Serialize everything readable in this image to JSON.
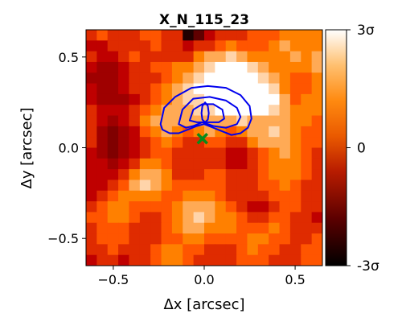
{
  "chart_data": {
    "type": "heatmap",
    "title": "X_N_115_23",
    "xlabel": "Δx [arcsec]",
    "ylabel": "Δy [arcsec]",
    "xlim": [
      -0.65,
      0.65
    ],
    "ylim": [
      -0.65,
      0.65
    ],
    "x_ticks": [
      {
        "value": -0.5,
        "label": "−0.5"
      },
      {
        "value": 0.0,
        "label": "0.0"
      },
      {
        "value": 0.5,
        "label": "0.5"
      }
    ],
    "y_ticks": [
      {
        "value": -0.5,
        "label": "−0.5"
      },
      {
        "value": 0.0,
        "label": "0.0"
      },
      {
        "value": 0.5,
        "label": "0.5"
      }
    ],
    "colormap": "gist_heat",
    "colorbar": {
      "range": [
        -3,
        3
      ],
      "units": "σ",
      "ticks": [
        {
          "value": 3,
          "label": "3σ"
        },
        {
          "value": 0,
          "label": "0"
        },
        {
          "value": -3,
          "label": "-3σ"
        }
      ]
    },
    "grid": {
      "nx": 22,
      "ny": 22,
      "extent": [
        -0.65,
        0.65,
        -0.65,
        0.65
      ],
      "values": [
        [
          0.5,
          1.0,
          0.5,
          0.5,
          0.5,
          1.0,
          1.0,
          0.5,
          0.5,
          -2.5,
          -1.5,
          0.0,
          0.5,
          0.5,
          0.5,
          1.0,
          1.0,
          1.0,
          1.5,
          1.5,
          1.5,
          1.5
        ],
        [
          0.0,
          0.0,
          0.5,
          0.5,
          0.5,
          0.5,
          1.0,
          0.5,
          0.5,
          0.0,
          0.5,
          0.5,
          1.0,
          1.5,
          1.0,
          1.0,
          1.0,
          1.5,
          2.0,
          1.5,
          1.5,
          1.5
        ],
        [
          0.5,
          0.0,
          0.0,
          0.5,
          1.0,
          0.5,
          0.5,
          0.5,
          0.5,
          0.5,
          1.5,
          2.0,
          2.0,
          2.5,
          2.0,
          1.5,
          1.5,
          1.5,
          1.5,
          2.0,
          1.5,
          2.0
        ],
        [
          0.0,
          -0.5,
          -0.5,
          0.0,
          0.5,
          0.5,
          1.0,
          1.0,
          1.5,
          1.5,
          2.0,
          2.5,
          3.0,
          3.0,
          3.0,
          2.5,
          2.0,
          1.5,
          1.5,
          1.5,
          1.5,
          2.0
        ],
        [
          -0.5,
          -0.5,
          -0.5,
          0.0,
          0.5,
          0.5,
          0.5,
          1.0,
          1.5,
          2.0,
          2.5,
          3.0,
          3.0,
          3.0,
          3.0,
          3.0,
          2.5,
          2.0,
          1.5,
          1.0,
          1.0,
          1.5
        ],
        [
          0.0,
          -0.5,
          -0.5,
          0.0,
          0.5,
          0.5,
          1.0,
          1.5,
          2.0,
          2.5,
          3.0,
          3.0,
          3.0,
          3.0,
          3.0,
          3.0,
          3.0,
          2.5,
          1.5,
          1.0,
          1.0,
          1.5
        ],
        [
          0.0,
          -0.5,
          -0.5,
          -0.5,
          0.0,
          0.5,
          1.0,
          1.5,
          2.0,
          2.5,
          2.5,
          3.0,
          3.0,
          3.0,
          3.0,
          3.0,
          3.0,
          3.0,
          2.0,
          1.0,
          1.5,
          1.5
        ],
        [
          0.5,
          0.0,
          0.0,
          0.0,
          0.5,
          1.0,
          1.5,
          2.0,
          2.0,
          2.0,
          2.5,
          2.5,
          3.0,
          3.0,
          3.0,
          3.0,
          3.0,
          2.5,
          2.0,
          1.5,
          1.5,
          1.5
        ],
        [
          0.5,
          0.0,
          -0.5,
          0.0,
          0.5,
          1.5,
          2.0,
          2.0,
          2.0,
          2.0,
          2.0,
          2.0,
          2.0,
          2.0,
          2.5,
          2.0,
          2.0,
          2.0,
          2.0,
          1.5,
          1.5,
          1.0
        ],
        [
          0.5,
          -0.5,
          -1.0,
          -0.5,
          0.0,
          1.0,
          1.5,
          2.0,
          1.5,
          1.0,
          1.5,
          2.0,
          1.5,
          1.0,
          1.5,
          2.0,
          2.0,
          2.5,
          2.0,
          1.5,
          1.0,
          1.0
        ],
        [
          0.5,
          -0.5,
          -1.0,
          -0.5,
          0.0,
          0.5,
          1.0,
          1.5,
          1.0,
          0.5,
          0.5,
          1.0,
          1.0,
          0.5,
          0.5,
          1.5,
          2.0,
          2.0,
          2.0,
          1.5,
          1.0,
          1.0
        ],
        [
          0.0,
          -0.5,
          -1.0,
          -0.5,
          0.0,
          0.5,
          1.0,
          1.0,
          0.5,
          0.5,
          0.5,
          0.5,
          0.5,
          0.0,
          0.0,
          0.5,
          1.0,
          1.5,
          2.0,
          1.5,
          1.0,
          0.5
        ],
        [
          0.0,
          0.0,
          -0.5,
          0.0,
          0.5,
          1.5,
          1.5,
          1.0,
          0.5,
          0.5,
          0.5,
          0.5,
          0.5,
          0.0,
          0.0,
          0.5,
          1.0,
          1.5,
          1.5,
          1.5,
          1.0,
          0.5
        ],
        [
          0.0,
          0.0,
          0.0,
          0.5,
          1.5,
          2.0,
          2.0,
          1.5,
          0.5,
          0.5,
          0.5,
          1.0,
          1.0,
          0.5,
          0.5,
          0.5,
          1.0,
          1.5,
          1.5,
          1.5,
          1.0,
          0.5
        ],
        [
          0.0,
          0.0,
          0.5,
          1.0,
          2.0,
          2.5,
          2.0,
          1.5,
          1.0,
          1.0,
          1.0,
          1.0,
          1.0,
          0.5,
          0.5,
          0.5,
          1.0,
          1.0,
          1.5,
          1.0,
          0.5,
          0.5
        ],
        [
          0.0,
          0.5,
          1.0,
          1.5,
          1.5,
          1.5,
          1.5,
          1.0,
          1.0,
          1.5,
          1.5,
          1.5,
          1.0,
          0.5,
          0.5,
          0.5,
          0.5,
          1.0,
          1.0,
          1.0,
          0.5,
          0.5
        ],
        [
          0.5,
          1.0,
          1.5,
          1.5,
          1.0,
          1.0,
          1.0,
          1.0,
          1.5,
          2.0,
          2.0,
          2.0,
          1.5,
          1.0,
          0.5,
          0.0,
          0.0,
          0.5,
          1.0,
          1.0,
          0.5,
          0.5
        ],
        [
          1.0,
          1.0,
          1.5,
          1.5,
          1.0,
          0.5,
          0.5,
          1.0,
          1.5,
          2.0,
          2.5,
          2.0,
          1.5,
          1.5,
          1.0,
          0.5,
          0.5,
          1.0,
          1.0,
          0.5,
          0.5,
          0.0
        ],
        [
          0.5,
          1.0,
          1.0,
          1.0,
          0.5,
          0.5,
          0.5,
          1.0,
          1.5,
          2.0,
          2.0,
          1.5,
          1.5,
          1.5,
          1.0,
          1.0,
          1.0,
          1.5,
          1.0,
          0.5,
          0.5,
          0.5
        ],
        [
          0.5,
          1.0,
          1.0,
          1.0,
          0.5,
          0.5,
          0.5,
          1.0,
          1.0,
          1.5,
          1.5,
          1.0,
          1.0,
          1.0,
          1.0,
          1.5,
          1.5,
          1.0,
          1.0,
          0.5,
          0.5,
          1.0
        ],
        [
          0.5,
          0.5,
          1.0,
          0.5,
          0.5,
          0.5,
          1.0,
          1.5,
          1.5,
          1.0,
          1.0,
          0.5,
          0.5,
          0.5,
          1.0,
          1.5,
          1.0,
          1.0,
          0.5,
          0.5,
          1.0,
          1.0
        ],
        [
          0.0,
          0.5,
          0.5,
          0.0,
          0.5,
          0.5,
          1.0,
          1.5,
          1.5,
          1.0,
          0.5,
          0.5,
          0.5,
          0.5,
          1.0,
          1.0,
          1.0,
          0.5,
          0.5,
          0.5,
          1.0,
          1.0
        ]
      ]
    },
    "contours": {
      "color": "#0000ee",
      "levels": [
        [
          [
            -0.24,
            0.13
          ],
          [
            -0.22,
            0.22
          ],
          [
            -0.16,
            0.28
          ],
          [
            -0.07,
            0.33
          ],
          [
            0.02,
            0.34
          ],
          [
            0.12,
            0.33
          ],
          [
            0.2,
            0.29
          ],
          [
            0.25,
            0.23
          ],
          [
            0.26,
            0.16
          ],
          [
            0.24,
            0.11
          ],
          [
            0.2,
            0.08
          ],
          [
            0.15,
            0.07
          ],
          [
            0.1,
            0.09
          ],
          [
            0.05,
            0.11
          ],
          [
            0.0,
            0.13
          ],
          [
            -0.04,
            0.12
          ],
          [
            -0.09,
            0.1
          ],
          [
            -0.14,
            0.08
          ],
          [
            -0.19,
            0.08
          ],
          [
            -0.23,
            0.1
          ]
        ],
        [
          [
            -0.14,
            0.13
          ],
          [
            -0.12,
            0.21
          ],
          [
            -0.06,
            0.27
          ],
          [
            0.03,
            0.28
          ],
          [
            0.12,
            0.26
          ],
          [
            0.18,
            0.22
          ],
          [
            0.2,
            0.17
          ],
          [
            0.18,
            0.13
          ],
          [
            0.12,
            0.11
          ],
          [
            0.05,
            0.12
          ],
          [
            -0.01,
            0.14
          ],
          [
            -0.06,
            0.12
          ],
          [
            -0.1,
            0.11
          ]
        ],
        [
          [
            -0.08,
            0.15
          ],
          [
            -0.06,
            0.21
          ],
          [
            -0.01,
            0.24
          ],
          [
            0.05,
            0.24
          ],
          [
            0.1,
            0.21
          ],
          [
            0.11,
            0.16
          ],
          [
            0.08,
            0.14
          ],
          [
            0.02,
            0.14
          ],
          [
            -0.04,
            0.14
          ]
        ],
        [
          [
            -0.015,
            0.19
          ],
          [
            -0.01,
            0.23
          ],
          [
            0.005,
            0.25
          ],
          [
            0.02,
            0.23
          ],
          [
            0.025,
            0.19
          ],
          [
            0.02,
            0.155
          ],
          [
            0.005,
            0.14
          ],
          [
            -0.01,
            0.155
          ]
        ]
      ]
    },
    "marker": {
      "x": -0.01,
      "y": 0.05,
      "symbol": "x",
      "color": "#0a8a1a"
    }
  }
}
